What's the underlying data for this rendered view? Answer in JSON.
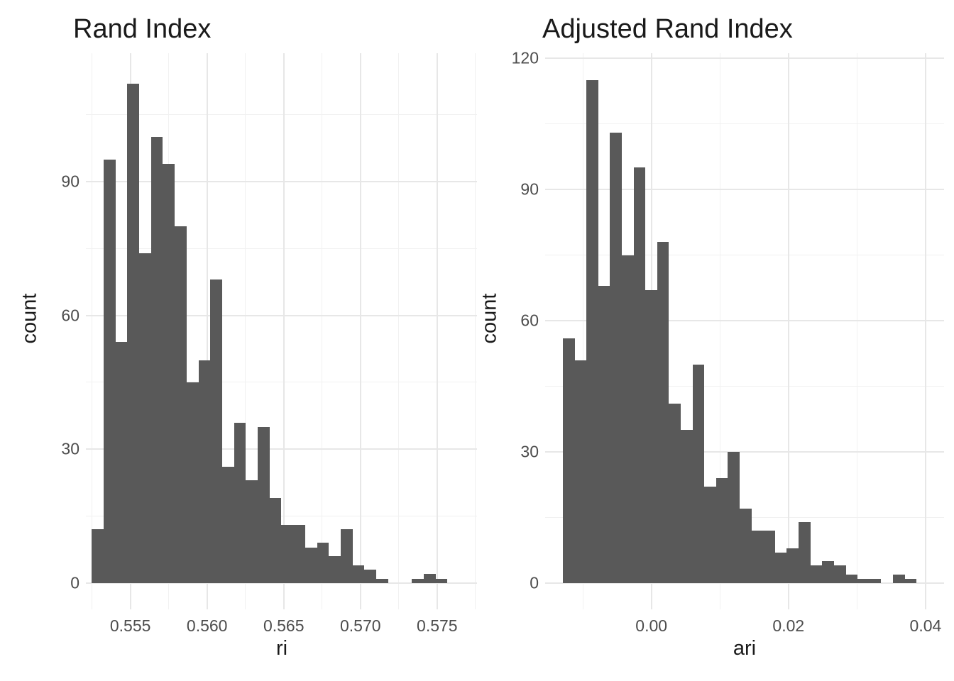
{
  "figure": {
    "background": "#ffffff",
    "description": "Two side-by-side histograms of clustering agreement metrics"
  },
  "colors": {
    "bar_fill": "#595959",
    "grid_major": "#e7e7e7",
    "grid_minor": "#f1f1f1",
    "tick_label": "#4d4d4d",
    "title_text": "#1a1a1a",
    "background": "#ffffff"
  },
  "chart_data": [
    {
      "type": "bar",
      "variant": "histogram",
      "title": "Rand Index",
      "xlabel": "ri",
      "ylabel": "count",
      "legend": "none",
      "grid": true,
      "bin_start": 0.55248,
      "bin_width": 0.000773,
      "counts": [
        12,
        95,
        54,
        112,
        74,
        100,
        94,
        80,
        45,
        50,
        68,
        26,
        36,
        23,
        35,
        19,
        13,
        13,
        8,
        9,
        6,
        12,
        4,
        3,
        1,
        0,
        0,
        1,
        2,
        1
      ],
      "x_ticks": [
        {
          "value": 0.555,
          "label": "0.555"
        },
        {
          "value": 0.56,
          "label": "0.560"
        },
        {
          "value": 0.565,
          "label": "0.565"
        },
        {
          "value": 0.57,
          "label": "0.570"
        },
        {
          "value": 0.575,
          "label": "0.575"
        }
      ],
      "x_minor_ticks": [
        0.5525,
        0.5575,
        0.5625,
        0.5675,
        0.5725,
        0.5775
      ],
      "y_ticks": [
        {
          "value": 0,
          "label": "0"
        },
        {
          "value": 30,
          "label": "30"
        },
        {
          "value": 60,
          "label": "60"
        },
        {
          "value": 90,
          "label": "90"
        }
      ],
      "y_minor_ticks": [
        15,
        45,
        75,
        105
      ],
      "xlim": [
        0.5521,
        0.5776
      ],
      "ylim": [
        -5.9,
        118.8
      ]
    },
    {
      "type": "bar",
      "variant": "histogram",
      "title": "Adjusted Rand Index",
      "xlabel": "ari",
      "ylabel": "count",
      "legend": "none",
      "grid": true,
      "bin_start": -0.01292,
      "bin_width": 0.00172,
      "counts": [
        56,
        51,
        115,
        68,
        103,
        75,
        95,
        67,
        78,
        41,
        35,
        50,
        22,
        24,
        30,
        17,
        12,
        12,
        7,
        8,
        14,
        4,
        5,
        4,
        2,
        1,
        1,
        0,
        2,
        1
      ],
      "x_ticks": [
        {
          "value": 0.0,
          "label": "0.00"
        },
        {
          "value": 0.02,
          "label": "0.02"
        },
        {
          "value": 0.04,
          "label": "0.04"
        }
      ],
      "x_minor_ticks": [
        -0.01,
        0.01,
        0.03
      ],
      "y_ticks": [
        {
          "value": 0,
          "label": "0"
        },
        {
          "value": 30,
          "label": "30"
        },
        {
          "value": 60,
          "label": "60"
        },
        {
          "value": 90,
          "label": "90"
        },
        {
          "value": 120,
          "label": "120"
        }
      ],
      "y_minor_ticks": [
        15,
        45,
        75,
        105
      ],
      "xlim": [
        -0.0155,
        0.0427
      ],
      "ylim": [
        -6.0,
        121.2
      ]
    }
  ]
}
